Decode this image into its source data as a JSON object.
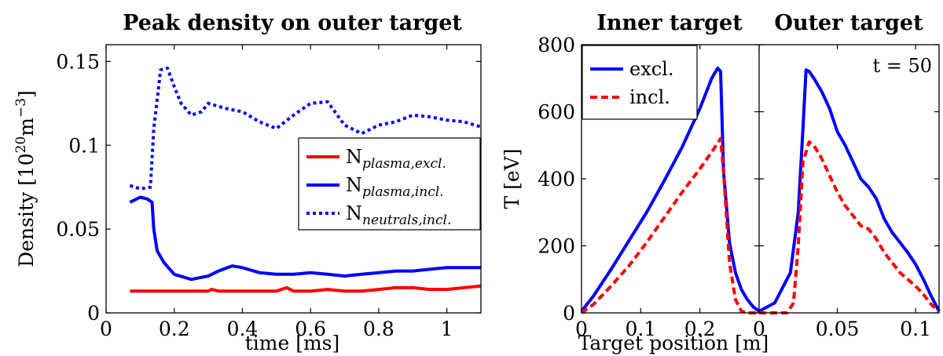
{
  "chart_data": [
    {
      "type": "line",
      "title": "Peak density on outer target",
      "xlabel": "time [ms]",
      "ylabel": "Density [10^20 m^-3]",
      "ylabel_parts": {
        "base": "Density [10",
        "exp1": "20",
        "mid": "m",
        "exp2": "−3",
        "end": "]"
      },
      "xlim": [
        0,
        1.1
      ],
      "ylim": [
        0,
        0.16
      ],
      "xticks": [
        0,
        0.2,
        0.4,
        0.6,
        0.8,
        1
      ],
      "xtick_labels": [
        "0",
        "0.2",
        "0.4",
        "0.6",
        "0.8",
        "1"
      ],
      "yticks": [
        0,
        0.05,
        0.1,
        0.15
      ],
      "ytick_labels": [
        "0",
        "0.05",
        "0.1",
        "0.15"
      ],
      "legend_position": "center-right",
      "series": [
        {
          "name": "N_plasma,excl.",
          "label_base": "N",
          "label_sub": "plasma,excl.",
          "color": "#ff0000",
          "style": "solid",
          "x": [
            0.07,
            0.1,
            0.2,
            0.28,
            0.3,
            0.31,
            0.33,
            0.4,
            0.5,
            0.53,
            0.55,
            0.6,
            0.65,
            0.7,
            0.75,
            0.8,
            0.85,
            0.9,
            0.95,
            1.0,
            1.05,
            1.1
          ],
          "y": [
            0.013,
            0.013,
            0.013,
            0.013,
            0.013,
            0.014,
            0.013,
            0.013,
            0.013,
            0.015,
            0.013,
            0.013,
            0.014,
            0.013,
            0.013,
            0.014,
            0.015,
            0.015,
            0.014,
            0.014,
            0.015,
            0.016
          ]
        },
        {
          "name": "N_plasma,incl.",
          "label_base": "N",
          "label_sub": "plasma,incl.",
          "color": "#0000ff",
          "style": "solid",
          "x": [
            0.07,
            0.1,
            0.12,
            0.135,
            0.14,
            0.15,
            0.17,
            0.2,
            0.25,
            0.3,
            0.33,
            0.37,
            0.4,
            0.45,
            0.5,
            0.55,
            0.6,
            0.65,
            0.7,
            0.75,
            0.8,
            0.85,
            0.9,
            0.95,
            1.0,
            1.05,
            1.1
          ],
          "y": [
            0.066,
            0.069,
            0.068,
            0.066,
            0.05,
            0.037,
            0.03,
            0.023,
            0.02,
            0.022,
            0.025,
            0.028,
            0.027,
            0.024,
            0.023,
            0.023,
            0.024,
            0.023,
            0.022,
            0.023,
            0.024,
            0.025,
            0.025,
            0.026,
            0.027,
            0.027,
            0.027
          ]
        },
        {
          "name": "N_neutrals,incl.",
          "label_base": "N",
          "label_sub": "neutrals,incl.",
          "color": "#0000ff",
          "style": "dotted",
          "x": [
            0.07,
            0.1,
            0.13,
            0.14,
            0.16,
            0.18,
            0.2,
            0.22,
            0.25,
            0.28,
            0.3,
            0.35,
            0.4,
            0.45,
            0.5,
            0.55,
            0.6,
            0.65,
            0.7,
            0.75,
            0.8,
            0.85,
            0.9,
            0.95,
            1.0,
            1.05,
            1.1
          ],
          "y": [
            0.076,
            0.074,
            0.075,
            0.11,
            0.145,
            0.146,
            0.135,
            0.125,
            0.118,
            0.12,
            0.125,
            0.122,
            0.12,
            0.114,
            0.11,
            0.118,
            0.125,
            0.126,
            0.112,
            0.107,
            0.112,
            0.114,
            0.118,
            0.117,
            0.115,
            0.114,
            0.111
          ]
        }
      ]
    },
    {
      "type": "line",
      "ylabel": "T [eV]",
      "ylim": [
        0,
        800
      ],
      "yticks": [
        0,
        200,
        400,
        600,
        800
      ],
      "ytick_labels": [
        "0",
        "200",
        "400",
        "600",
        "800"
      ],
      "xlabel": "Target position [m]",
      "legend_position": "top-left",
      "legend": [
        {
          "name": "excl.",
          "color": "#0000ff",
          "style": "solid"
        },
        {
          "name": "incl.",
          "color": "#ff0000",
          "style": "dashed"
        }
      ],
      "annotation": "t = 50",
      "panels": [
        {
          "title": "Inner target",
          "xlim": [
            0,
            0.3
          ],
          "xticks": [
            0,
            0.1,
            0.2
          ],
          "xtick_labels": [
            "0",
            "0.1",
            "0.2"
          ],
          "series": [
            {
              "name": "excl.",
              "color": "#0000ff",
              "style": "solid",
              "x": [
                0,
                0.02,
                0.05,
                0.08,
                0.11,
                0.14,
                0.17,
                0.2,
                0.22,
                0.23,
                0.235,
                0.24,
                0.25,
                0.26,
                0.27,
                0.28,
                0.29,
                0.3
              ],
              "y": [
                5,
                50,
                130,
                215,
                300,
                395,
                495,
                610,
                700,
                730,
                720,
                420,
                210,
                120,
                70,
                40,
                18,
                5
              ]
            },
            {
              "name": "incl.",
              "color": "#ff0000",
              "style": "dashed",
              "x": [
                0,
                0.02,
                0.05,
                0.08,
                0.11,
                0.14,
                0.17,
                0.2,
                0.22,
                0.235,
                0.24,
                0.25,
                0.26,
                0.27,
                0.28,
                0.29,
                0.3
              ],
              "y": [
                0,
                25,
                80,
                140,
                210,
                285,
                360,
                430,
                480,
                520,
                420,
                150,
                40,
                5,
                0,
                0,
                0
              ]
            }
          ]
        },
        {
          "title": "Outer target",
          "xlim": [
            0,
            0.115
          ],
          "xticks": [
            0,
            0.05,
            0.1
          ],
          "xtick_labels": [
            "0",
            "0.05",
            "0.1"
          ],
          "series": [
            {
              "name": "excl.",
              "color": "#0000ff",
              "style": "solid",
              "x": [
                0,
                0.01,
                0.02,
                0.025,
                0.028,
                0.03,
                0.032,
                0.035,
                0.04,
                0.045,
                0.05,
                0.055,
                0.06,
                0.065,
                0.07,
                0.075,
                0.08,
                0.085,
                0.09,
                0.095,
                0.1,
                0.105,
                0.11,
                0.115
              ],
              "y": [
                5,
                30,
                120,
                300,
                550,
                725,
                720,
                700,
                660,
                610,
                540,
                500,
                450,
                400,
                375,
                340,
                280,
                240,
                210,
                180,
                145,
                100,
                50,
                5
              ]
            },
            {
              "name": "incl.",
              "color": "#ff0000",
              "style": "dashed",
              "x": [
                0,
                0.01,
                0.018,
                0.022,
                0.025,
                0.028,
                0.032,
                0.035,
                0.04,
                0.045,
                0.05,
                0.055,
                0.06,
                0.065,
                0.07,
                0.075,
                0.08,
                0.085,
                0.09,
                0.095,
                0.1,
                0.105,
                0.11,
                0.115
              ],
              "y": [
                0,
                0,
                0,
                30,
                200,
                450,
                510,
                500,
                460,
                410,
                360,
                320,
                290,
                260,
                250,
                220,
                180,
                150,
                120,
                100,
                80,
                55,
                25,
                5
              ]
            }
          ]
        }
      ]
    }
  ]
}
